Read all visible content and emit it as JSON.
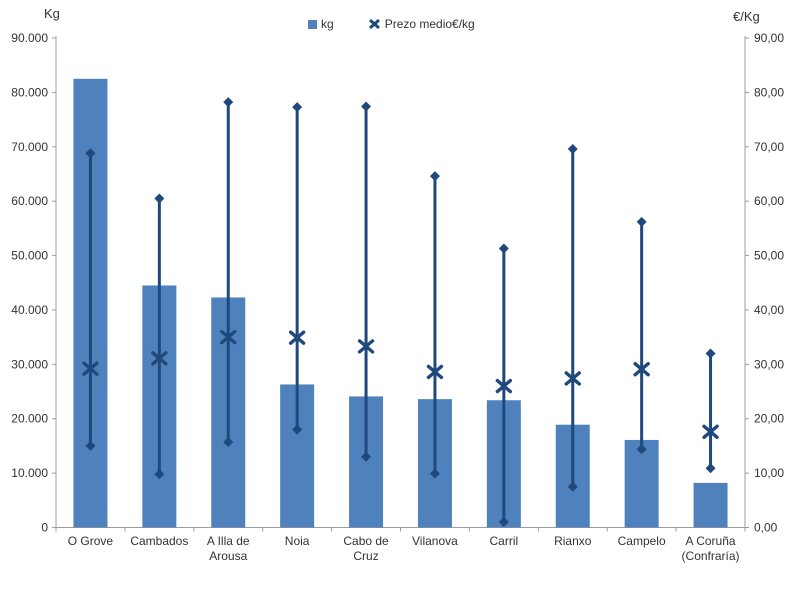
{
  "axes": {
    "left_title": "Kg",
    "right_title": "€/Kg",
    "left_tick_labels": [
      "90.000",
      "80.000",
      "70.000",
      "60.000",
      "50.000",
      "40.000",
      "30.000",
      "20.000",
      "10.000",
      "0"
    ],
    "right_tick_labels": [
      "90,00",
      "80,00",
      "70,00",
      "60,00",
      "50,00",
      "40,00",
      "30,00",
      "20,00",
      "10,00",
      "0,00"
    ]
  },
  "legend": {
    "kg_label": "kg",
    "prezo_label": "Prezo medio€/kg"
  },
  "colors": {
    "bar": "#4F81BD",
    "marker": "#1F497D",
    "axis_line": "#9c9c9c",
    "text": "#333333"
  },
  "chart_data": {
    "type": "bar",
    "title": "",
    "categories": [
      "O Grove",
      "Cambados",
      "A Illa de Arousa",
      "Noia",
      "Cabo de Cruz",
      "Vilanova",
      "Carril",
      "Rianxo",
      "Campelo",
      "A Coruña (Confraría)"
    ],
    "series": [
      {
        "name": "kg",
        "type": "bar",
        "axis": "left",
        "color": "#4F81BD",
        "values": [
          82500,
          44500,
          42300,
          26300,
          24100,
          23600,
          23400,
          18900,
          16100,
          8200
        ]
      },
      {
        "name": "Prezo medio€/kg",
        "type": "scatter-x",
        "axis": "right",
        "color": "#1F497D",
        "values": [
          29.2,
          31.1,
          35.0,
          34.9,
          33.3,
          28.6,
          26.0,
          27.4,
          29.1,
          17.6
        ]
      },
      {
        "name": "high",
        "type": "range-high",
        "axis": "right",
        "color": "#1F497D",
        "values": [
          68.8,
          60.5,
          78.2,
          77.3,
          77.4,
          64.6,
          51.3,
          69.6,
          56.2,
          32.0
        ]
      },
      {
        "name": "low",
        "type": "range-low",
        "axis": "right",
        "color": "#1F497D",
        "values": [
          15.0,
          9.8,
          15.7,
          18.0,
          13.0,
          9.9,
          1.0,
          7.5,
          14.4,
          10.9
        ]
      }
    ],
    "left_axis": {
      "label": "Kg",
      "min": 0,
      "max": 90000,
      "step": 10000
    },
    "right_axis": {
      "label": "€/Kg",
      "min": 0,
      "max": 90,
      "step": 10
    },
    "legend_position": "top",
    "grid": false
  }
}
